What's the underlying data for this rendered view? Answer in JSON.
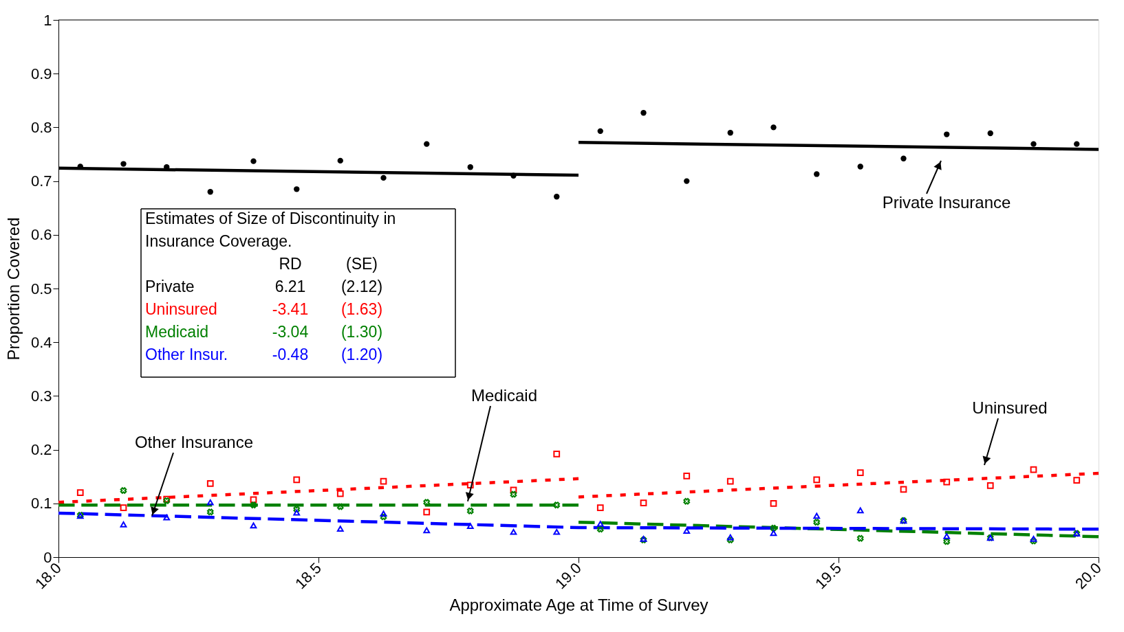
{
  "chart_data": {
    "type": "scatter",
    "xlabel": "Approximate Age at Time of Survey",
    "ylabel": "Proportion Covered",
    "xlim": [
      18,
      20
    ],
    "ylim": [
      0,
      1
    ],
    "xticks": [
      {
        "value": 18,
        "label": "18.0"
      },
      {
        "value": 18.5,
        "label": "18.5"
      },
      {
        "value": 19,
        "label": "19.0"
      },
      {
        "value": 19.5,
        "label": "19.5"
      },
      {
        "value": 20,
        "label": "20.0"
      }
    ],
    "yticks": [
      0,
      0.1,
      0.2,
      0.3,
      0.4,
      0.5,
      0.6,
      0.7,
      0.8,
      0.9,
      1
    ],
    "grid": false,
    "series": [
      {
        "color": "#000000",
        "marker": "circle",
        "x": [
          18.042,
          18.125,
          18.208,
          18.292,
          18.375,
          18.458,
          18.542,
          18.625,
          18.708,
          18.792,
          18.875,
          18.958,
          19.042,
          19.125,
          19.208,
          19.292,
          19.375,
          19.458,
          19.542,
          19.625,
          19.708,
          19.792,
          19.875,
          19.958
        ],
        "values": [
          0.727,
          0.732,
          0.726,
          0.68,
          0.737,
          0.685,
          0.738,
          0.706,
          0.769,
          0.726,
          0.71,
          0.671,
          0.793,
          0.827,
          0.7,
          0.79,
          0.8,
          0.713,
          0.727,
          0.742,
          0.787,
          0.789,
          0.769,
          0.769
        ]
      },
      {
        "color": "#ff0000",
        "marker": "square",
        "x": [
          18.042,
          18.125,
          18.208,
          18.292,
          18.375,
          18.458,
          18.542,
          18.625,
          18.708,
          18.792,
          18.875,
          18.958,
          19.042,
          19.125,
          19.208,
          19.292,
          19.375,
          19.458,
          19.542,
          19.625,
          19.708,
          19.792,
          19.875,
          19.958
        ],
        "values": [
          0.12,
          0.092,
          0.108,
          0.137,
          0.107,
          0.144,
          0.118,
          0.141,
          0.084,
          0.134,
          0.125,
          0.192,
          0.092,
          0.101,
          0.151,
          0.141,
          0.1,
          0.144,
          0.157,
          0.126,
          0.14,
          0.133,
          0.163,
          0.143
        ]
      },
      {
        "color": "#008000",
        "marker": "cross",
        "x": [
          18.042,
          18.125,
          18.208,
          18.292,
          18.375,
          18.458,
          18.542,
          18.625,
          18.708,
          18.792,
          18.875,
          18.958,
          19.042,
          19.125,
          19.208,
          19.292,
          19.375,
          19.458,
          19.542,
          19.625,
          19.708,
          19.792,
          19.875,
          19.958
        ],
        "values": [
          0.078,
          0.124,
          0.105,
          0.084,
          0.097,
          0.089,
          0.094,
          0.075,
          0.102,
          0.086,
          0.117,
          0.097,
          0.052,
          0.032,
          0.104,
          0.032,
          0.054,
          0.065,
          0.035,
          0.068,
          0.029,
          0.036,
          0.03,
          0.044
        ]
      },
      {
        "color": "#0000ff",
        "marker": "triangle",
        "x": [
          18.042,
          18.125,
          18.208,
          18.292,
          18.375,
          18.458,
          18.542,
          18.625,
          18.708,
          18.792,
          18.875,
          18.958,
          19.042,
          19.125,
          19.208,
          19.292,
          19.375,
          19.458,
          19.542,
          19.625,
          19.708,
          19.792,
          19.875,
          19.958
        ],
        "values": [
          0.077,
          0.061,
          0.074,
          0.102,
          0.059,
          0.083,
          0.053,
          0.081,
          0.05,
          0.058,
          0.047,
          0.047,
          0.062,
          0.034,
          0.049,
          0.037,
          0.045,
          0.077,
          0.087,
          0.068,
          0.039,
          0.036,
          0.034,
          0.044
        ]
      },
      {
        "type": "line",
        "color": "#000000",
        "line_style": "solid",
        "x": [
          18,
          19
        ],
        "values": [
          0.724,
          0.711
        ]
      },
      {
        "type": "line",
        "color": "#000000",
        "line_style": "solid",
        "x": [
          19,
          20
        ],
        "values": [
          0.772,
          0.759
        ]
      },
      {
        "type": "line",
        "color": "#ff0000",
        "line_style": "dotted",
        "x": [
          18,
          19
        ],
        "values": [
          0.102,
          0.146
        ]
      },
      {
        "type": "line",
        "color": "#ff0000",
        "line_style": "dotted",
        "x": [
          19,
          20
        ],
        "values": [
          0.112,
          0.156
        ]
      },
      {
        "type": "line",
        "color": "#008000",
        "line_style": "dashed",
        "x": [
          18,
          19
        ],
        "values": [
          0.097,
          0.097
        ]
      },
      {
        "type": "line",
        "color": "#008000",
        "line_style": "dashed",
        "x": [
          19,
          20
        ],
        "values": [
          0.065,
          0.038
        ]
      },
      {
        "type": "line",
        "color": "#0000ff",
        "line_style": "dashed",
        "x": [
          18,
          19,
          20
        ],
        "values": [
          0.082,
          0.055,
          0.052
        ]
      }
    ],
    "annotations": [
      "Private Insurance",
      "Uninsured",
      {
        "text": "Medicaid",
        "x": 18.787,
        "y": 0.104
      },
      {
        "text": "Other Insurance",
        "x": 18.18,
        "y": 0.077
      },
      "Estimates of Size of Discontinuity in",
      "Insurance Coverage.",
      "\tRD\t(SE)",
      "Private\t6.21\t(2.12)",
      "Uninsured\t-3.41\t(1.63)",
      "Medicaid\t-3.04\t(1.30)",
      "Other Insur.\t-0.48\t(1.20)"
    ]
  }
}
